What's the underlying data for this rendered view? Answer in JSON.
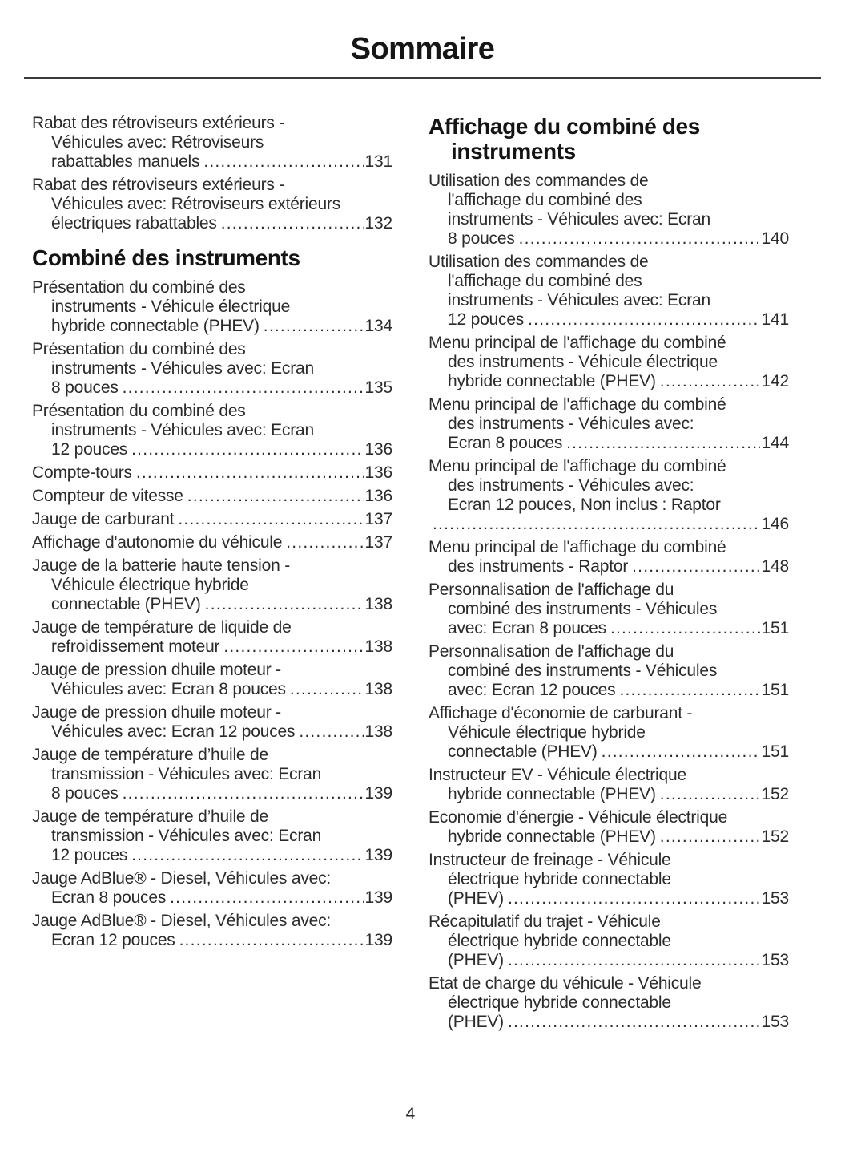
{
  "page": {
    "title": "Sommaire",
    "footer_page_number": "4"
  },
  "columns": {
    "left": {
      "items": [
        {
          "type": "entry",
          "lines": [
            "Rabat des rétroviseurs extérieurs -",
            "Véhicules avec: Rétroviseurs",
            "rabattables manuels"
          ],
          "page": "131"
        },
        {
          "type": "entry",
          "lines": [
            "Rabat des rétroviseurs extérieurs -",
            "Véhicules avec: Rétroviseurs extérieurs",
            "électriques rabattables"
          ],
          "page": "132"
        },
        {
          "type": "heading",
          "lines": [
            "Combiné des instruments"
          ]
        },
        {
          "type": "entry",
          "lines": [
            "Présentation du combiné des",
            "instruments - Véhicule électrique",
            "hybride connectable (PHEV)"
          ],
          "page": "134"
        },
        {
          "type": "entry",
          "lines": [
            "Présentation du combiné des",
            "instruments - Véhicules avec: Ecran",
            "8 pouces"
          ],
          "page": "135"
        },
        {
          "type": "entry",
          "lines": [
            "Présentation du combiné des",
            "instruments - Véhicules avec: Ecran",
            "12 pouces"
          ],
          "page": "136"
        },
        {
          "type": "entry",
          "lines": [
            "Compte-tours"
          ],
          "page": "136"
        },
        {
          "type": "entry",
          "lines": [
            "Compteur de vitesse"
          ],
          "page": "136"
        },
        {
          "type": "entry",
          "lines": [
            "Jauge de carburant"
          ],
          "page": "137"
        },
        {
          "type": "entry",
          "lines": [
            "Affichage d'autonomie du véhicule"
          ],
          "page": "137"
        },
        {
          "type": "entry",
          "lines": [
            "Jauge de la batterie haute tension -",
            "Véhicule électrique hybride",
            "connectable (PHEV)"
          ],
          "page": "138"
        },
        {
          "type": "entry",
          "lines": [
            "Jauge de température de liquide de",
            "refroidissement moteur"
          ],
          "page": "138"
        },
        {
          "type": "entry",
          "lines": [
            "Jauge de pression dhuile moteur -",
            "Véhicules avec: Ecran 8 pouces"
          ],
          "page": "138"
        },
        {
          "type": "entry",
          "lines": [
            "Jauge de pression dhuile moteur -",
            "Véhicules avec: Ecran 12 pouces"
          ],
          "page": "138"
        },
        {
          "type": "entry",
          "lines": [
            "Jauge de température d’huile de",
            "transmission - Véhicules avec: Ecran",
            "8 pouces"
          ],
          "page": "139"
        },
        {
          "type": "entry",
          "lines": [
            "Jauge de température d’huile de",
            "transmission - Véhicules avec: Ecran",
            "12 pouces"
          ],
          "page": "139"
        },
        {
          "type": "entry",
          "lines": [
            "Jauge AdBlue® - Diesel, Véhicules avec:",
            "Ecran 8 pouces"
          ],
          "page": "139"
        },
        {
          "type": "entry",
          "lines": [
            "Jauge AdBlue® - Diesel, Véhicules avec:",
            "Ecran 12 pouces"
          ],
          "page": "139"
        }
      ]
    },
    "right": {
      "items": [
        {
          "type": "heading",
          "lines": [
            "Affichage du combiné des",
            "instruments"
          ]
        },
        {
          "type": "entry",
          "lines": [
            "Utilisation des commandes de",
            "l'affichage du combiné des",
            "instruments - Véhicules avec: Ecran",
            "8 pouces"
          ],
          "page": "140"
        },
        {
          "type": "entry",
          "lines": [
            "Utilisation des commandes de",
            "l'affichage du combiné des",
            "instruments - Véhicules avec: Ecran",
            "12 pouces"
          ],
          "page": "141"
        },
        {
          "type": "entry",
          "lines": [
            "Menu principal de l'affichage du combiné",
            "des instruments - Véhicule électrique",
            "hybride connectable (PHEV)"
          ],
          "page": "142"
        },
        {
          "type": "entry",
          "lines": [
            "Menu principal de l'affichage du combiné",
            "des instruments - Véhicules avec:",
            "Ecran 8 pouces"
          ],
          "page": "144"
        },
        {
          "type": "entry",
          "lines": [
            "Menu principal de l'affichage du combiné",
            "des instruments - Véhicules avec:",
            "Ecran 12 pouces, Non inclus : Raptor",
            ""
          ],
          "page": "146"
        },
        {
          "type": "entry",
          "lines": [
            "Menu principal de l'affichage du combiné",
            "des instruments - Raptor"
          ],
          "page": "148"
        },
        {
          "type": "entry",
          "lines": [
            "Personnalisation de l'affichage du",
            "combiné des instruments - Véhicules",
            "avec: Ecran 8 pouces"
          ],
          "page": "151"
        },
        {
          "type": "entry",
          "lines": [
            "Personnalisation de l'affichage du",
            "combiné des instruments - Véhicules",
            "avec: Ecran 12 pouces"
          ],
          "page": "151"
        },
        {
          "type": "entry",
          "lines": [
            "Affichage d'économie de carburant -",
            "Véhicule électrique hybride",
            "connectable (PHEV)"
          ],
          "page": "151"
        },
        {
          "type": "entry",
          "lines": [
            "Instructeur EV - Véhicule électrique",
            "hybride connectable (PHEV)"
          ],
          "page": "152"
        },
        {
          "type": "entry",
          "lines": [
            "Economie d'énergie - Véhicule électrique",
            "hybride connectable (PHEV)"
          ],
          "page": "152"
        },
        {
          "type": "entry",
          "lines": [
            "Instructeur de freinage - Véhicule",
            "électrique hybride connectable",
            "(PHEV)"
          ],
          "page": "153"
        },
        {
          "type": "entry",
          "lines": [
            "Récapitulatif du trajet - Véhicule",
            "électrique hybride connectable",
            "(PHEV)"
          ],
          "page": "153"
        },
        {
          "type": "entry",
          "lines": [
            "Etat de charge du véhicule - Véhicule",
            "électrique hybride connectable",
            "(PHEV)"
          ],
          "page": "153"
        }
      ]
    }
  }
}
